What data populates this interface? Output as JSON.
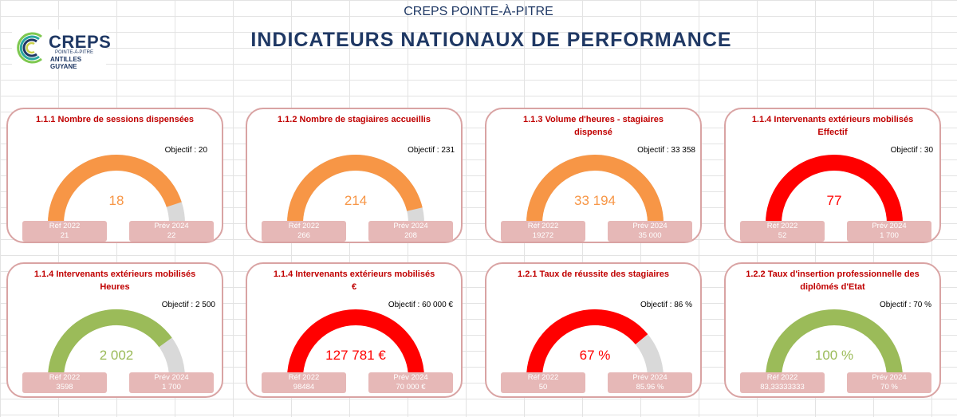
{
  "header": {
    "org": "CREPS POINTE-À-PITRE",
    "title": "INDICATEURS  NATIONAUX  DE  PERFORMANCE"
  },
  "logo": {
    "word": "CREPS",
    "sub1": "POINTE-À-PITRE",
    "sub2": "ANTILLES GUYANE"
  },
  "cards": [
    {
      "title": "1.1.1 Nombre de sessions dispensées",
      "objective_label": "Objectif : 20",
      "value": "18",
      "fraction": 0.9,
      "color": "#f79646",
      "ref_label": "Réf 2022",
      "ref_value": "21",
      "prev_label": "Prév 2024",
      "prev_value": "22"
    },
    {
      "title": "1.1.2 Nombre de stagiaires accueillis",
      "objective_label": "Objectif : 231",
      "value": "214",
      "fraction": 0.926,
      "color": "#f79646",
      "ref_label": "Réf 2022",
      "ref_value": "266",
      "prev_label": "Prév 2024",
      "prev_value": "208"
    },
    {
      "title": "1.1.3 Volume d'heures - stagiaires dispensé",
      "objective_label": "Objectif : 33 358",
      "value": "33 194",
      "fraction": 0.995,
      "color": "#f79646",
      "ref_label": "Réf 2022",
      "ref_value": "19272",
      "prev_label": "Prév 2024",
      "prev_value": "35 000"
    },
    {
      "title": "1.1.4 Intervenants extérieurs mobilisés Effectif",
      "objective_label": "Objectif : 30",
      "value": "77",
      "fraction": 1,
      "color": "#ff0000",
      "ref_label": "Réf 2022",
      "ref_value": "52",
      "prev_label": "Prév 2024",
      "prev_value": "1 700"
    },
    {
      "title": "1.1.4 Intervenants extérieurs mobilisés Heures",
      "objective_label": "Objectif : 2 500",
      "value": "2 002",
      "fraction": 0.8,
      "color": "#9bbb59",
      "ref_label": "Réf 2022",
      "ref_value": "3598",
      "prev_label": "Prév 2024",
      "prev_value": "1 700"
    },
    {
      "title": "1.1.4 Intervenants extérieurs mobilisés €",
      "objective_label": "Objectif : 60 000  €",
      "value": "127 781 €",
      "fraction": 1,
      "color": "#ff0000",
      "ref_label": "Réf 2022",
      "ref_value": "98484",
      "prev_label": "Prév 2024",
      "prev_value": "70 000 €"
    },
    {
      "title": "1.2.1 Taux de réussite des stagiaires",
      "objective_label": "Objectif : 86  %",
      "value": "67 %",
      "fraction": 0.78,
      "color": "#ff0000",
      "ref_label": "Réf 2022",
      "ref_value": "50",
      "prev_label": "Prév 2024",
      "prev_value": "85.96 %"
    },
    {
      "title": "1.2.2 Taux d'insertion professionnelle des diplômés d'Etat",
      "objective_label": "Objectif : 70  %",
      "value": "100 %",
      "fraction": 1,
      "color": "#9bbb59",
      "ref_label": "Réf 2022",
      "ref_value": "83,33333333",
      "prev_label": "Prév 2024",
      "prev_value": "70 %"
    }
  ],
  "colors": {
    "title_blue": "#1f3864",
    "card_title_red": "#c00000",
    "card_border": "#d9a3a3",
    "pill_bg": "#e6b8b7",
    "gauge_track": "#d9d9d9"
  }
}
